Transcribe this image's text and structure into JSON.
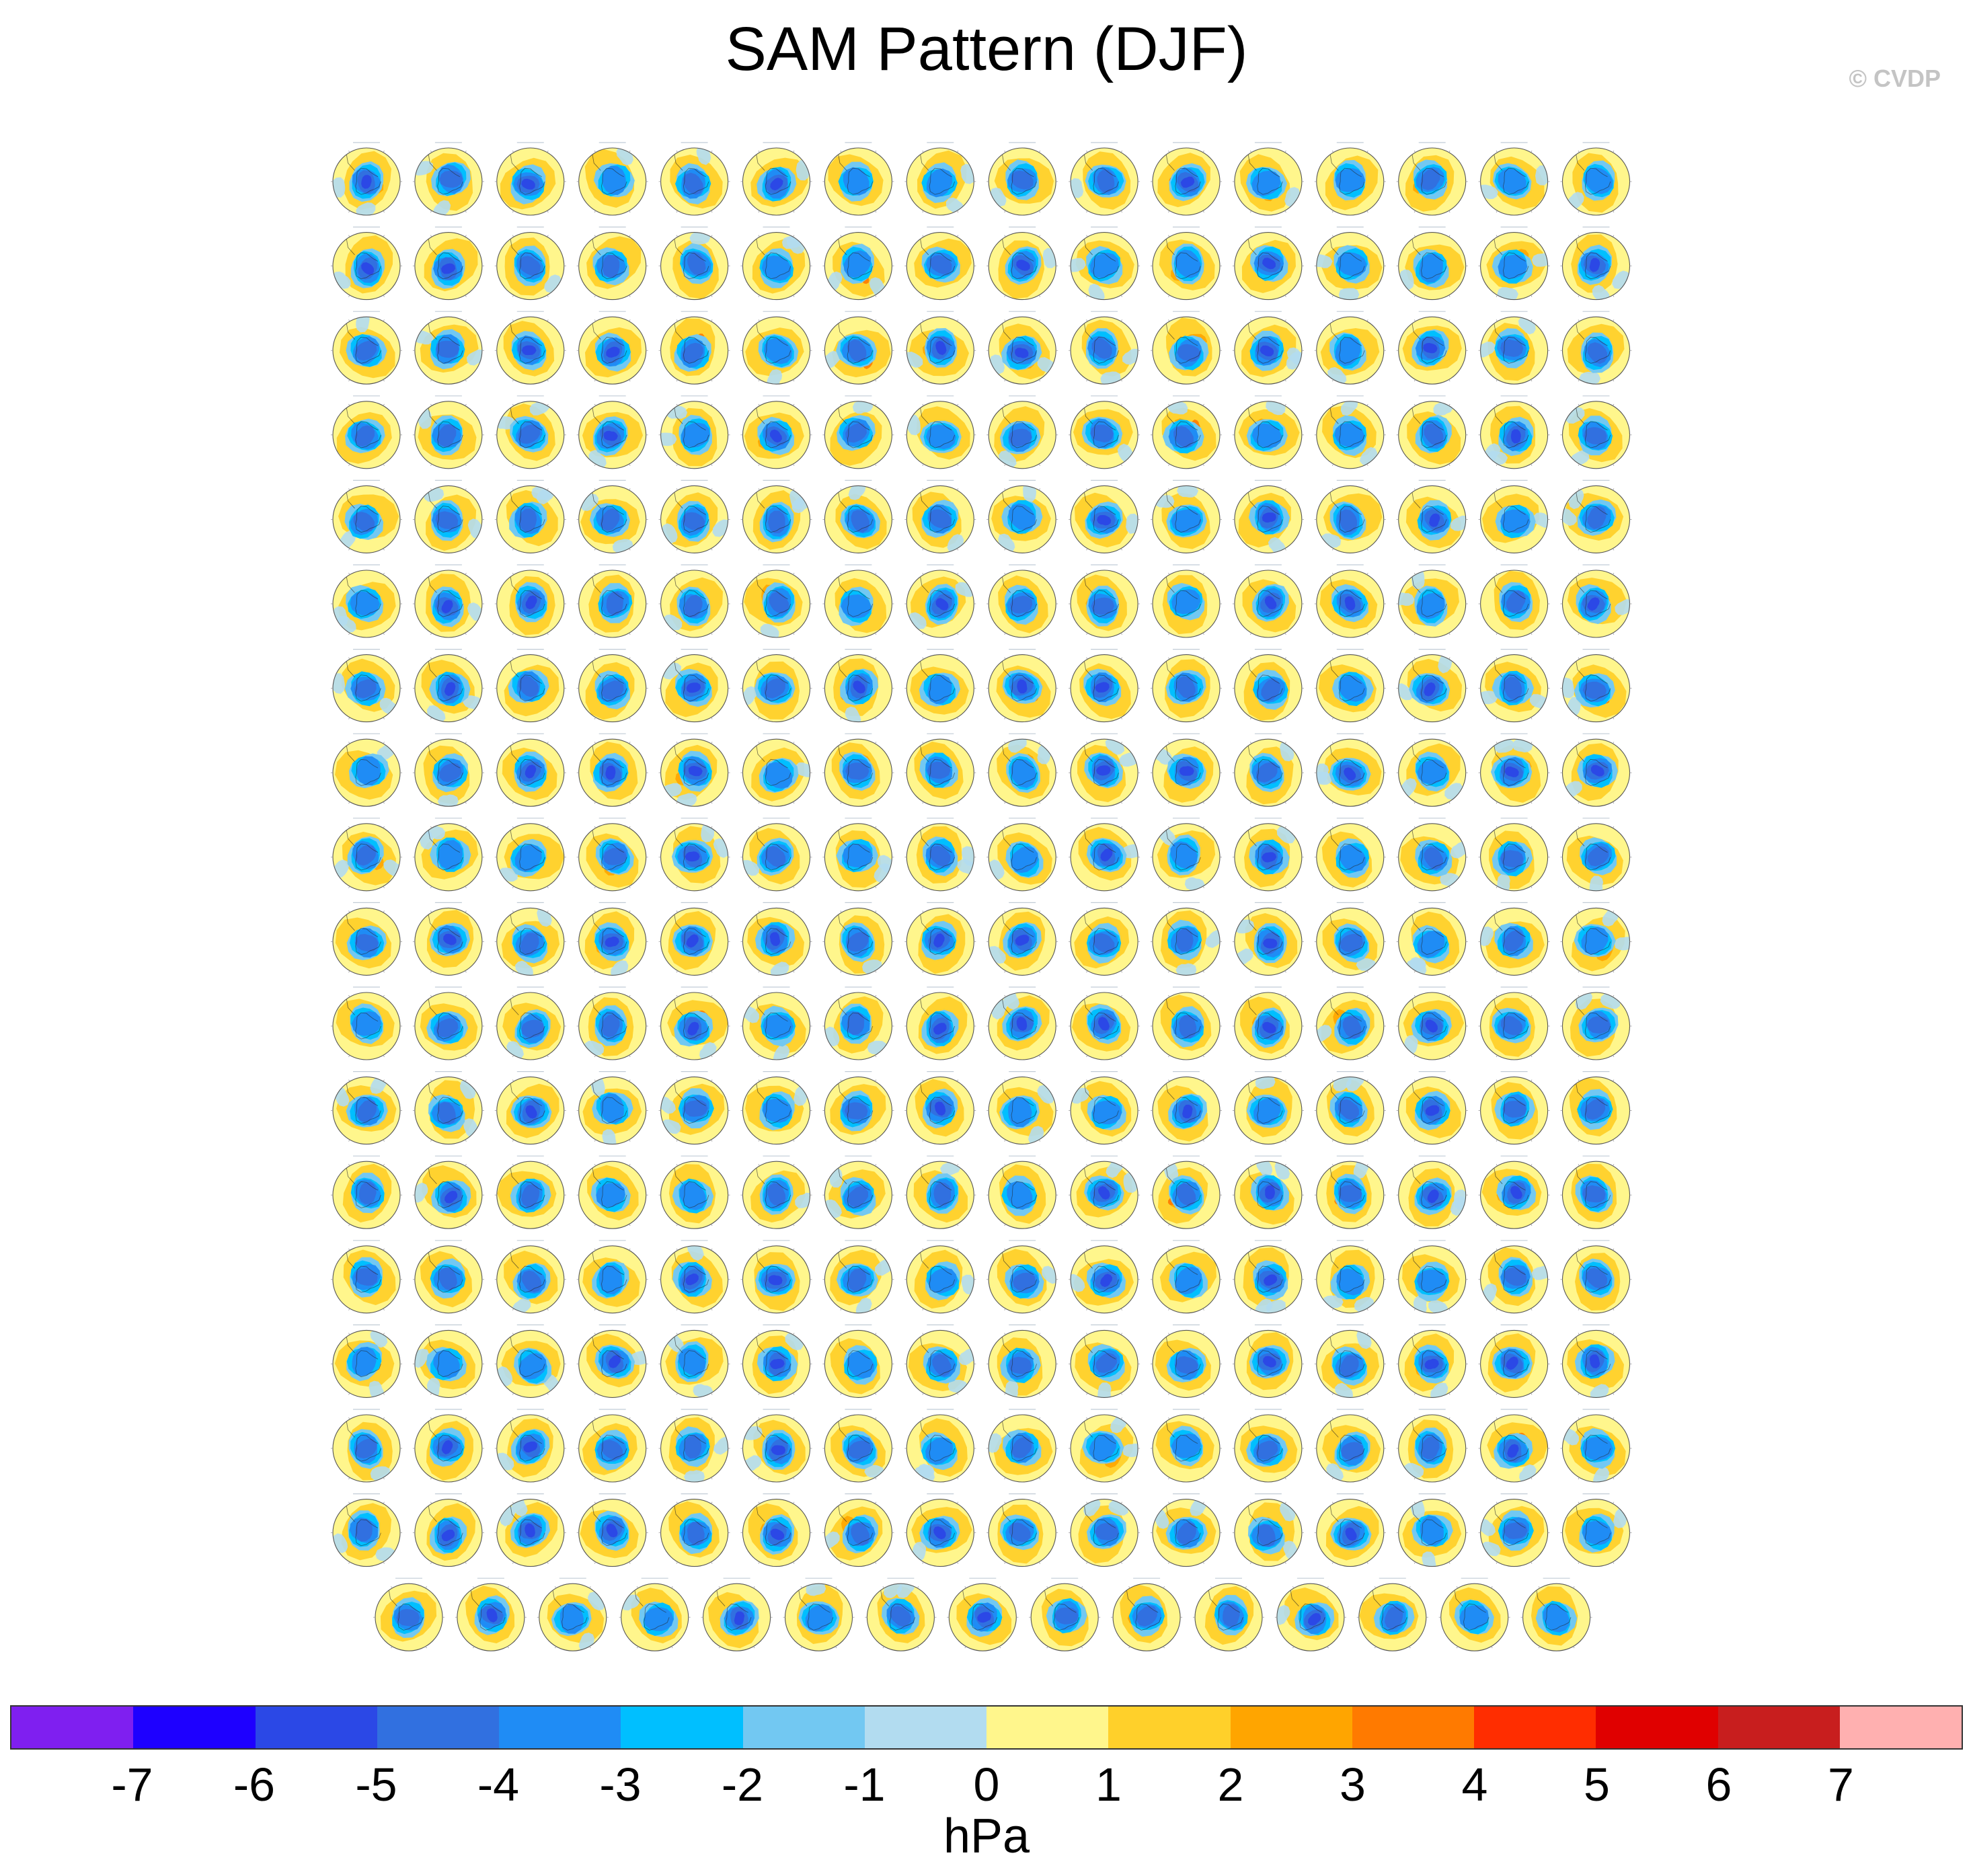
{
  "title": "SAM Pattern (DJF)",
  "copyright": "© CVDP",
  "grid": {
    "rows": 18,
    "cols": 16
  },
  "colorbar": {
    "colors": [
      "#7f1ff0",
      "#1e00ff",
      "#2b48e6",
      "#3170e0",
      "#1f8cf5",
      "#00bfff",
      "#72c8f2",
      "#b2dcf0",
      "#fff68c",
      "#ffd02a",
      "#ffa500",
      "#ff7a00",
      "#ff2d00",
      "#e00000",
      "#c81e1e",
      "#ffb0b0"
    ],
    "labels": [
      "-7",
      "-6",
      "-5",
      "-4",
      "-3",
      "-2",
      "-1",
      "0",
      "1",
      "2",
      "3",
      "4",
      "5",
      "6",
      "7"
    ],
    "units": "hPa"
  },
  "map_colors": {
    "ocean_pos": "#fff68c",
    "pos_mid": "#ffd02a",
    "pos_high": "#ffa500",
    "pos_peak": "#ff7a00",
    "neg_light": "#b2dcf0",
    "neg_mid": "#72c8f2",
    "neg_cyan": "#00bfff",
    "neg_blue": "#1f8cf5",
    "neg_deep": "#3170e0",
    "neg_dark": "#2b48e6",
    "coast": "#222222",
    "grid": "#999999"
  }
}
